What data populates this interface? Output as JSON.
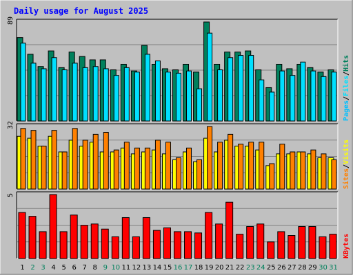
{
  "title": "Daily usage for August 2025",
  "colors": {
    "background": "#c0c0c0",
    "plot_bg": "#c0c0c0",
    "title": "#0000ff",
    "hits": "#00805c",
    "files": "#00e0ff",
    "pages": "#00c0ff",
    "visits": "#ffff00",
    "sites": "#ff8000",
    "kbytes": "#ff0000",
    "weekend_label": "#00805c",
    "weekday_label": "#000000"
  },
  "chart_data": [
    {
      "type": "bar",
      "panel": "hits-files-pages",
      "ymax_label": "89",
      "ylim": [
        0,
        89
      ],
      "legend": [
        "Pages",
        "Files",
        "Hits"
      ],
      "legend_separator": "/",
      "categories": [
        "1",
        "2",
        "3",
        "4",
        "5",
        "6",
        "7",
        "8",
        "9",
        "10",
        "11",
        "12",
        "13",
        "14",
        "15",
        "16",
        "17",
        "18",
        "19",
        "20",
        "21",
        "22",
        "23",
        "24",
        "25",
        "26",
        "27",
        "28",
        "29",
        "30",
        "31"
      ],
      "series": [
        {
          "name": "Hits",
          "values": [
            75,
            60,
            49,
            63,
            48,
            62,
            58,
            55,
            55,
            46,
            51,
            45,
            68,
            51,
            47,
            46,
            51,
            44,
            89,
            51,
            62,
            62,
            63,
            46,
            30,
            51,
            47,
            51,
            48,
            44,
            46
          ]
        },
        {
          "name": "Files",
          "values": [
            70,
            52,
            47,
            57,
            46,
            52,
            48,
            49,
            47,
            41,
            48,
            44,
            60,
            54,
            44,
            43,
            45,
            29,
            79,
            46,
            57,
            59,
            59,
            37,
            26,
            45,
            41,
            53,
            45,
            40,
            44
          ]
        }
      ]
    },
    {
      "type": "bar",
      "panel": "visits-sites",
      "ymax_label": "32",
      "ylim": [
        0,
        32
      ],
      "legend": [
        "Sites",
        "Visits"
      ],
      "legend_separator": "/",
      "categories": [
        "1",
        "2",
        "3",
        "4",
        "5",
        "6",
        "7",
        "8",
        "9",
        "10",
        "11",
        "12",
        "13",
        "14",
        "15",
        "16",
        "17",
        "18",
        "19",
        "20",
        "21",
        "22",
        "23",
        "24",
        "25",
        "26",
        "27",
        "28",
        "29",
        "30",
        "31"
      ],
      "series": [
        {
          "name": "Visits",
          "values": [
            27,
            26,
            22,
            27,
            19,
            25,
            22,
            24,
            19,
            19,
            21,
            18,
            19,
            20,
            18,
            15,
            19,
            14,
            26,
            19,
            25,
            22,
            22,
            20,
            12,
            18,
            18,
            19,
            18,
            16,
            16
          ]
        },
        {
          "name": "Sites",
          "values": [
            31,
            30,
            22,
            30,
            19,
            31,
            25,
            28,
            29,
            20,
            24,
            21,
            21,
            25,
            24,
            16,
            21,
            15,
            32,
            24,
            28,
            23,
            24,
            24,
            13,
            23,
            19,
            19,
            20,
            18,
            15
          ]
        }
      ]
    },
    {
      "type": "bar",
      "panel": "kbytes",
      "ymax_label": "5",
      "ylim": [
        0,
        5
      ],
      "legend": [
        "KBytes"
      ],
      "categories": [
        "1",
        "2",
        "3",
        "4",
        "5",
        "6",
        "7",
        "8",
        "9",
        "10",
        "11",
        "12",
        "13",
        "14",
        "15",
        "16",
        "17",
        "18",
        "19",
        "20",
        "21",
        "22",
        "23",
        "24",
        "25",
        "26",
        "27",
        "28",
        "29",
        "30",
        "31"
      ],
      "series": [
        {
          "name": "KBytes",
          "values": [
            3.6,
            3.3,
            2.1,
            5.0,
            2.1,
            3.4,
            2.6,
            2.7,
            2.3,
            1.7,
            3.2,
            1.7,
            3.2,
            2.2,
            2.4,
            2.1,
            2.1,
            2.0,
            3.6,
            2.7,
            4.4,
            1.9,
            2.5,
            2.7,
            1.3,
            2.1,
            1.8,
            2.5,
            2.5,
            1.7,
            1.9
          ]
        }
      ]
    }
  ]
}
